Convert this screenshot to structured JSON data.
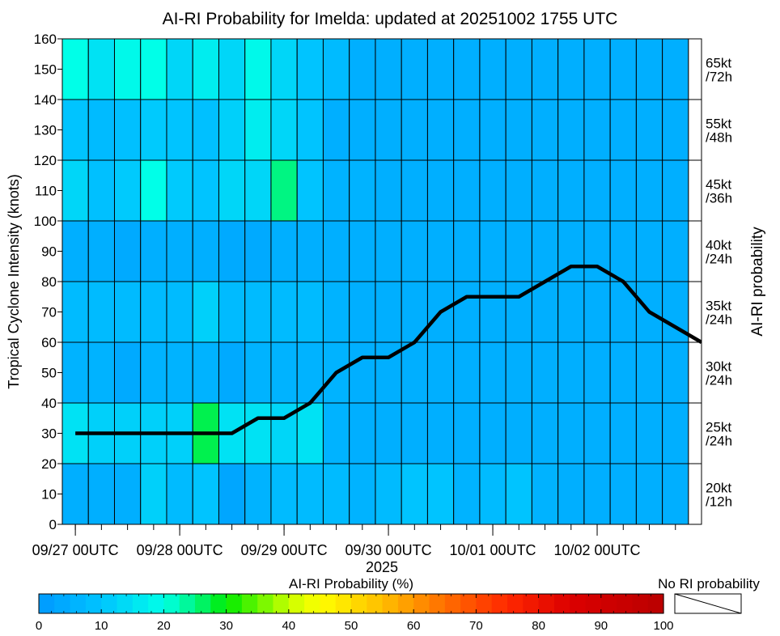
{
  "chart_data": {
    "type": "heatmap",
    "title": "AI-RI Probability for Imelda: updated at 20251002 1755 UTC",
    "ylabel": "Tropical Cyclone Intensity (knots)",
    "ylabel_right": "AI-RI probability",
    "xlabel": "2025",
    "ylim": [
      0,
      160
    ],
    "yticks": [
      0,
      10,
      20,
      30,
      40,
      50,
      60,
      70,
      80,
      90,
      100,
      110,
      120,
      130,
      140,
      150,
      160
    ],
    "xticks": [
      {
        "t": 0,
        "label": "09/27 00UTC"
      },
      {
        "t": 24,
        "label": "09/28 00UTC"
      },
      {
        "t": 48,
        "label": "09/29 00UTC"
      },
      {
        "t": 72,
        "label": "09/30 00UTC"
      },
      {
        "t": 96,
        "label": "10/01 00UTC"
      },
      {
        "t": 120,
        "label": "10/02 00UTC"
      }
    ],
    "time_range_hours": [
      -3,
      144
    ],
    "times_hours": [
      0,
      6,
      12,
      18,
      24,
      30,
      36,
      42,
      48,
      54,
      60,
      66,
      72,
      78,
      84,
      90,
      96,
      102,
      108,
      114,
      120,
      126,
      132,
      138
    ],
    "rows": [
      {
        "label": "20kt\n/12h",
        "y0": 0,
        "y1": 20
      },
      {
        "label": "25kt\n/24h",
        "y0": 20,
        "y1": 40
      },
      {
        "label": "30kt\n/24h",
        "y0": 40,
        "y1": 60
      },
      {
        "label": "35kt\n/24h",
        "y0": 60,
        "y1": 80
      },
      {
        "label": "40kt\n/24h",
        "y0": 80,
        "y1": 100
      },
      {
        "label": "45kt\n/36h",
        "y0": 100,
        "y1": 120
      },
      {
        "label": "55kt\n/48h",
        "y0": 120,
        "y1": 140
      },
      {
        "label": "65kt\n/72h",
        "y0": 140,
        "y1": 160
      }
    ],
    "values": [
      [
        5,
        5,
        5,
        12,
        8,
        10,
        3,
        6,
        8,
        8,
        8,
        6,
        8,
        10,
        10,
        6,
        8,
        10,
        6,
        5,
        5,
        5,
        5,
        5
      ],
      [
        15,
        12,
        12,
        12,
        12,
        27,
        15,
        15,
        13,
        15,
        6,
        5,
        5,
        5,
        5,
        5,
        5,
        5,
        5,
        5,
        5,
        5,
        5,
        5
      ],
      [
        6,
        6,
        4,
        6,
        6,
        6,
        4,
        6,
        6,
        6,
        6,
        5,
        5,
        5,
        5,
        5,
        5,
        5,
        5,
        5,
        5,
        5,
        5,
        5
      ],
      [
        8,
        8,
        8,
        8,
        8,
        12,
        8,
        8,
        8,
        8,
        6,
        5,
        5,
        5,
        5,
        5,
        5,
        5,
        5,
        5,
        5,
        5,
        5,
        5
      ],
      [
        5,
        5,
        4,
        5,
        5,
        5,
        4,
        4,
        5,
        5,
        5,
        5,
        5,
        5,
        5,
        5,
        5,
        5,
        5,
        5,
        5,
        5,
        5,
        5
      ],
      [
        13,
        9,
        11,
        20,
        11,
        10,
        13,
        13,
        25,
        10,
        6,
        6,
        5,
        5,
        5,
        5,
        5,
        5,
        5,
        5,
        5,
        5,
        5,
        5
      ],
      [
        10,
        8,
        9,
        11,
        10,
        9,
        12,
        17,
        13,
        10,
        5,
        5,
        5,
        5,
        5,
        5,
        5,
        5,
        5,
        5,
        5,
        5,
        5,
        5
      ],
      [
        20,
        15,
        19,
        20,
        13,
        17,
        13,
        19,
        13,
        10,
        8,
        5,
        5,
        5,
        5,
        5,
        5,
        5,
        5,
        5,
        5,
        5,
        5,
        5
      ]
    ],
    "series": [
      {
        "x": [
          0,
          6,
          12,
          18,
          24,
          30,
          36,
          42,
          48,
          54,
          60,
          66,
          72,
          78,
          84,
          90,
          96,
          102,
          108,
          114,
          120,
          126,
          132,
          138,
          144
        ],
        "y": [
          30,
          30,
          30,
          30,
          30,
          30,
          30,
          35,
          35,
          40,
          50,
          55,
          55,
          60,
          70,
          75,
          75,
          75,
          80,
          85,
          85,
          80,
          70,
          65,
          60
        ],
        "color": "#000000"
      }
    ],
    "colorbar": {
      "label": "AI-RI Probability (%)",
      "range": [
        0,
        100
      ],
      "ticks": [
        0,
        10,
        20,
        30,
        40,
        50,
        60,
        70,
        80,
        90,
        100
      ],
      "no_ri_label": "No RI probability"
    }
  }
}
